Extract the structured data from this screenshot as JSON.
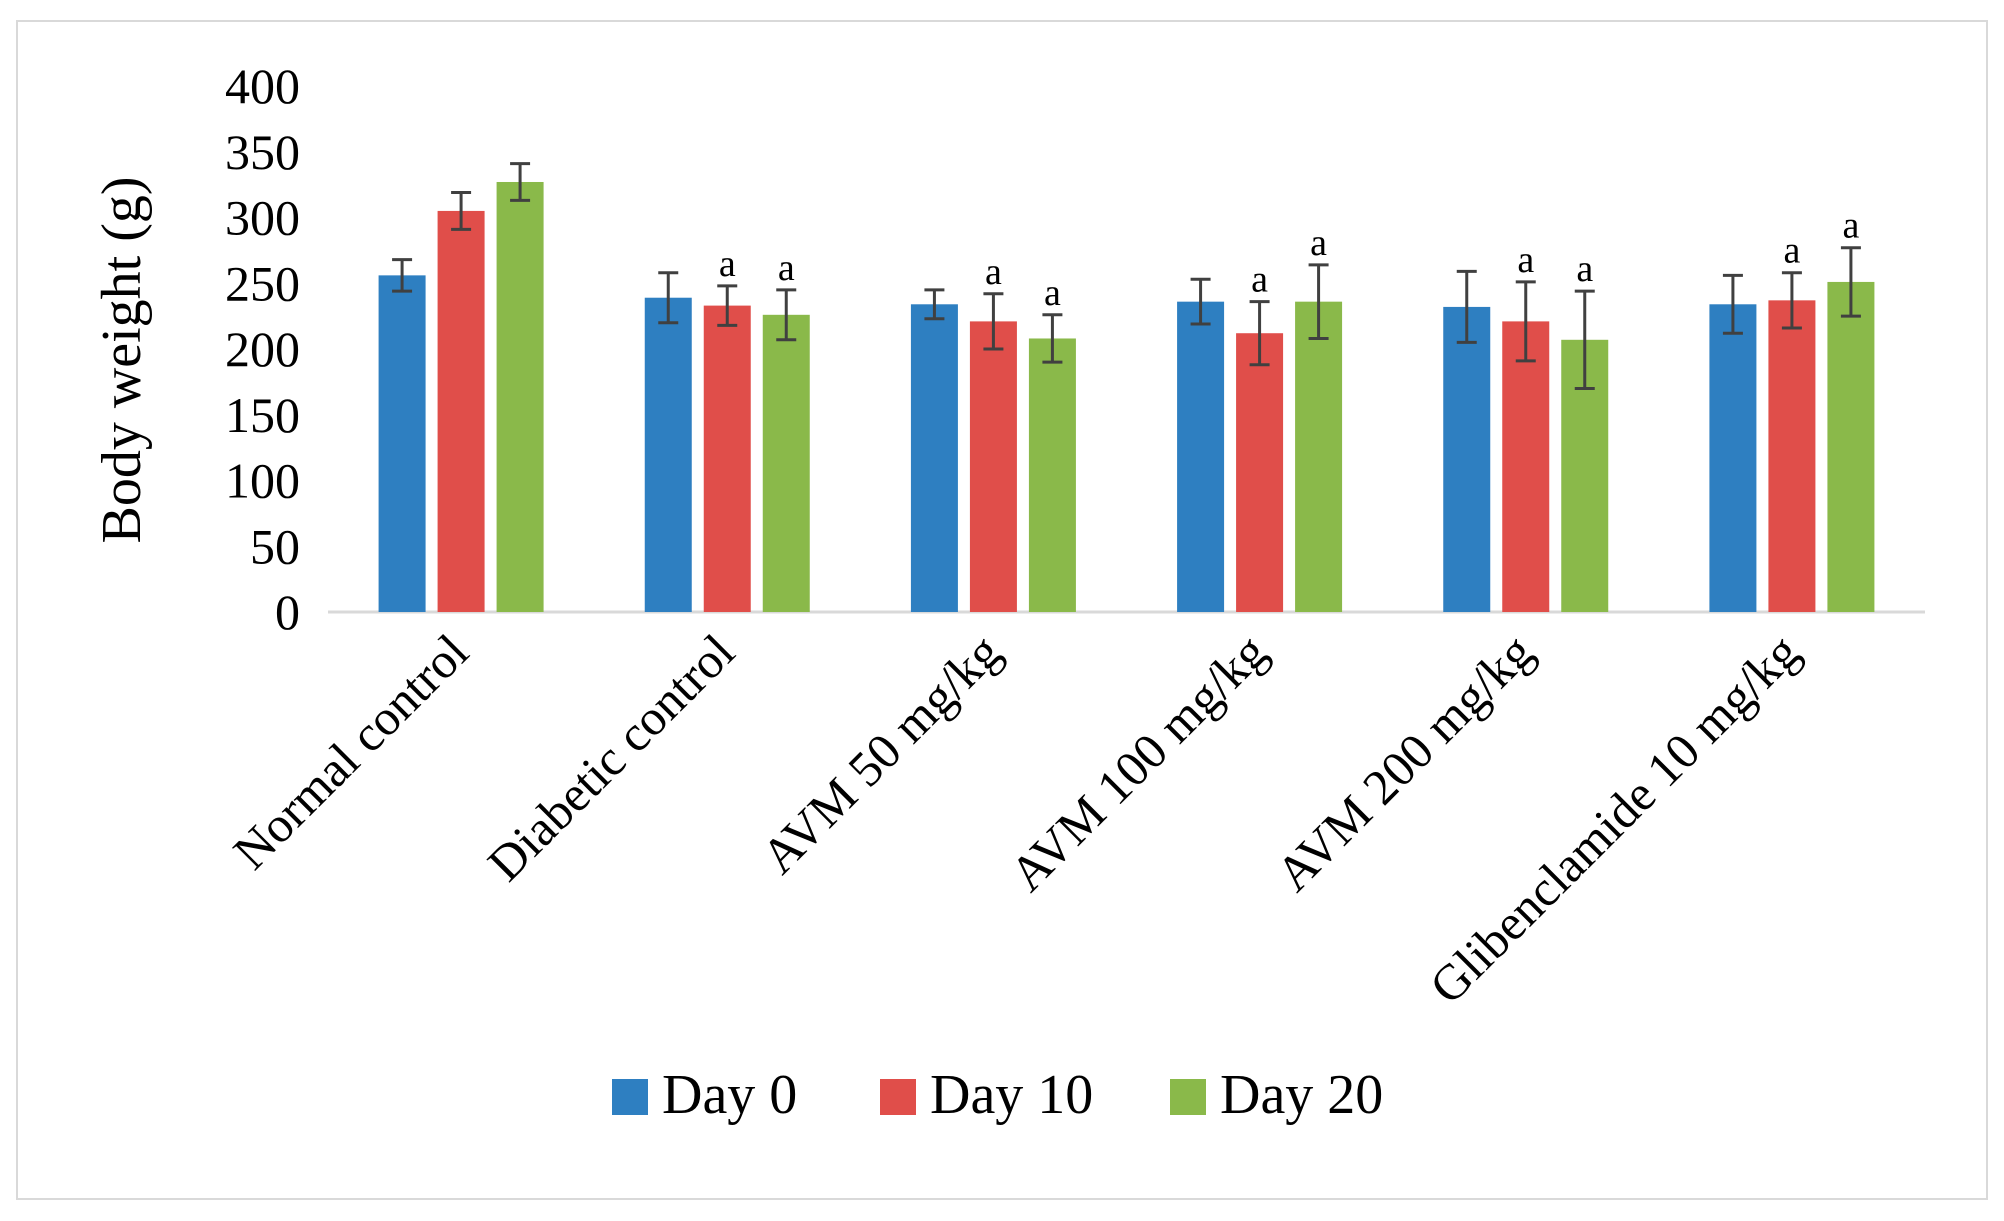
{
  "chart_data": {
    "type": "bar",
    "title": "",
    "xlabel": "",
    "ylabel": "Body weight (g)",
    "ylim": [
      0,
      400
    ],
    "yticks": [
      0,
      50,
      100,
      150,
      200,
      250,
      300,
      350,
      400
    ],
    "grid": false,
    "legend_position": "bottom",
    "categories": [
      "Normal control",
      "Diabetic control",
      "AVM 50 mg/kg",
      "AVM 100 mg/kg",
      "AVM 200 mg/kg",
      "Glibenclamide 10 mg/kg"
    ],
    "series": [
      {
        "name": "Day 0",
        "color": "#2e7fc1",
        "values": [
          256,
          239,
          234,
          236,
          232,
          234
        ],
        "errors": [
          12,
          19,
          11,
          17,
          27,
          22
        ],
        "labels": [
          "",
          "",
          "",
          "",
          "",
          ""
        ]
      },
      {
        "name": "Day 10",
        "color": "#e04e4a",
        "values": [
          305,
          233,
          221,
          212,
          221,
          237
        ],
        "errors": [
          14,
          15,
          21,
          24,
          30,
          21
        ],
        "labels": [
          "",
          "a",
          "a",
          "a",
          "a",
          "a"
        ]
      },
      {
        "name": "Day 20",
        "color": "#8ab94a",
        "values": [
          327,
          226,
          208,
          236,
          207,
          251
        ],
        "errors": [
          14,
          19,
          18,
          28,
          37,
          26
        ],
        "labels": [
          "",
          "a",
          "a",
          "a",
          "a",
          "a"
        ]
      }
    ]
  }
}
